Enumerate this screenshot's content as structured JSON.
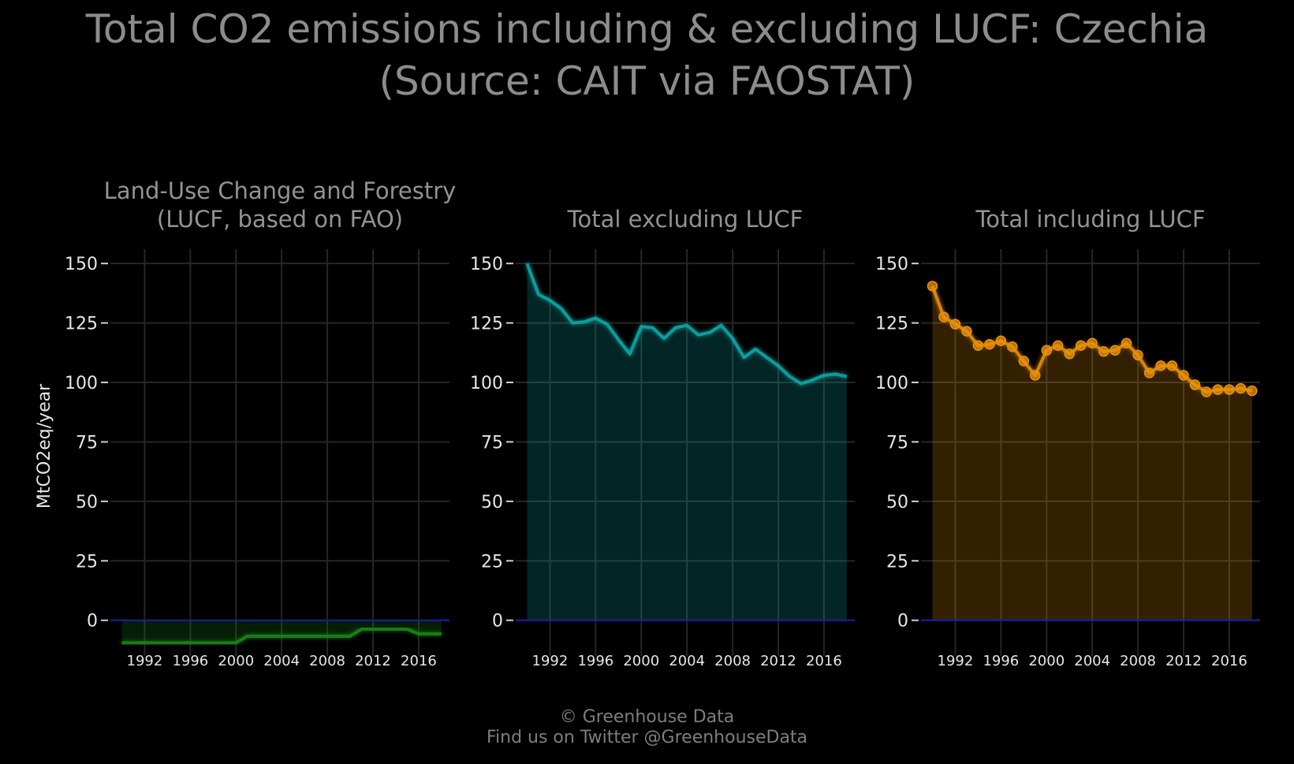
{
  "title": {
    "line1": "Total CO2 emissions including & excluding LUCF: Czechia",
    "line2": "(Source: CAIT via FAOSTAT)"
  },
  "footer": {
    "line1": "© Greenhouse Data",
    "line2": "Find us on Twitter @GreenhouseData"
  },
  "ylabel": "MtCO2eq/year",
  "colors": {
    "background": "#000000",
    "grid": "#262626",
    "zero_line": "#1a1aaa",
    "lucf": "#1a8a1a",
    "excl": "#10a8a8",
    "incl": "#e8900c"
  },
  "chart_data": [
    {
      "type": "area",
      "title": [
        "Land-Use Change and Forestry",
        "(LUCF, based on FAO)"
      ],
      "ylim": [
        -15,
        160
      ],
      "yticks": [
        0,
        25,
        50,
        75,
        100,
        125,
        150
      ],
      "xticks": [
        1992,
        1996,
        2000,
        2004,
        2008,
        2012,
        2016
      ],
      "grid": true,
      "markers": false,
      "color": "lucf",
      "x": [
        1990,
        1991,
        1992,
        1993,
        1994,
        1995,
        1996,
        1997,
        1998,
        1999,
        2000,
        2001,
        2002,
        2003,
        2004,
        2005,
        2006,
        2007,
        2008,
        2009,
        2010,
        2011,
        2012,
        2013,
        2014,
        2015,
        2016,
        2017,
        2018
      ],
      "y": [
        -9.5,
        -9.5,
        -9.5,
        -9.5,
        -9.5,
        -9.5,
        -9.5,
        -9.5,
        -9.5,
        -9.5,
        -9.5,
        -6.7,
        -6.7,
        -6.7,
        -6.7,
        -6.7,
        -6.7,
        -6.7,
        -6.7,
        -6.7,
        -6.7,
        -3.7,
        -3.7,
        -3.7,
        -3.7,
        -3.7,
        -5.7,
        -5.7,
        -5.7
      ]
    },
    {
      "type": "area",
      "title": [
        "Total excluding LUCF"
      ],
      "ylim": [
        -15,
        160
      ],
      "yticks": [
        0,
        25,
        50,
        75,
        100,
        125,
        150
      ],
      "xticks": [
        1992,
        1996,
        2000,
        2004,
        2008,
        2012,
        2016
      ],
      "grid": true,
      "markers": false,
      "color": "excl",
      "x": [
        1990,
        1991,
        1992,
        1993,
        1994,
        1995,
        1996,
        1997,
        1998,
        1999,
        2000,
        2001,
        2002,
        2003,
        2004,
        2005,
        2006,
        2007,
        2008,
        2009,
        2010,
        2011,
        2012,
        2013,
        2014,
        2015,
        2016,
        2017,
        2018
      ],
      "y": [
        150,
        137,
        134.5,
        131,
        125,
        125.5,
        127,
        124.5,
        118,
        112,
        123.5,
        123,
        118.5,
        123,
        124,
        120,
        121,
        124,
        118.5,
        110.5,
        114,
        110.5,
        107,
        102.5,
        99.5,
        101,
        103,
        103.5,
        102.5
      ]
    },
    {
      "type": "area",
      "title": [
        "Total including LUCF"
      ],
      "ylim": [
        -15,
        160
      ],
      "yticks": [
        0,
        25,
        50,
        75,
        100,
        125,
        150
      ],
      "xticks": [
        1992,
        1996,
        2000,
        2004,
        2008,
        2012,
        2016
      ],
      "grid": true,
      "markers": true,
      "color": "incl",
      "x": [
        1990,
        1991,
        1992,
        1993,
        1994,
        1995,
        1996,
        1997,
        1998,
        1999,
        2000,
        2001,
        2002,
        2003,
        2004,
        2005,
        2006,
        2007,
        2008,
        2009,
        2010,
        2011,
        2012,
        2013,
        2014,
        2015,
        2016,
        2017,
        2018
      ],
      "y": [
        140.5,
        127.5,
        124.5,
        121.5,
        115.5,
        116,
        117.5,
        115,
        109,
        103,
        113.5,
        115.5,
        112,
        115.5,
        116.5,
        113,
        113.5,
        116.5,
        111.5,
        104,
        107,
        107,
        103,
        99,
        96,
        97,
        97,
        97.5,
        96.5
      ]
    }
  ]
}
